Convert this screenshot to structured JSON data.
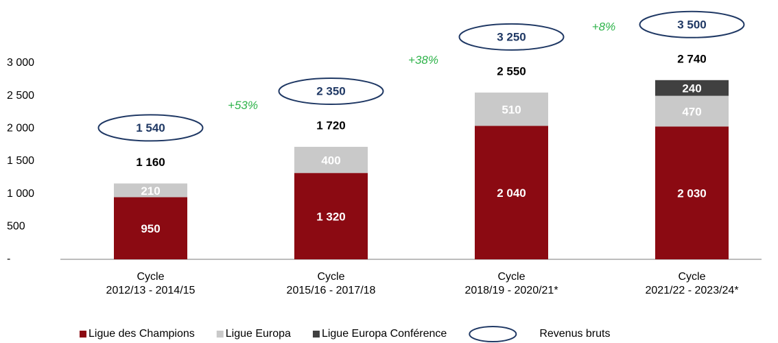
{
  "chart_data": {
    "type": "bar",
    "stacked": true,
    "categories": [
      [
        "Cycle",
        "2012/13 -  2014/15"
      ],
      [
        "Cycle",
        "2015/16 - 2017/18"
      ],
      [
        "Cycle",
        "2018/19 - 2020/21*"
      ],
      [
        "Cycle",
        "2021/22 - 2023/24*"
      ]
    ],
    "series": [
      {
        "name": "Ligue des Champions",
        "color": "#8b0a12",
        "label_color": "#ffffff",
        "values": [
          950,
          1320,
          2040,
          2030
        ],
        "value_labels": [
          "950",
          "1 320",
          "2 040",
          "2 030"
        ]
      },
      {
        "name": "Ligue Europa",
        "color": "#c9c9c9",
        "label_color": "#ffffff",
        "values": [
          210,
          400,
          510,
          470
        ],
        "value_labels": [
          "210",
          "400",
          "510",
          "470"
        ]
      },
      {
        "name": "Ligue Europa Conférence",
        "color": "#404040",
        "label_color": "#ffffff",
        "values": [
          null,
          null,
          null,
          240
        ],
        "value_labels": [
          null,
          null,
          null,
          "240"
        ]
      }
    ],
    "totals": {
      "values": [
        1160,
        1720,
        2550,
        2740
      ],
      "value_labels": [
        "1 160",
        "1 720",
        "2 550",
        "2 740"
      ]
    },
    "gross": {
      "name": "Revenus bruts",
      "color": "#1f3864",
      "values": [
        1540,
        2350,
        3250,
        3500
      ],
      "value_labels": [
        "1 540",
        "2 350",
        "3 250",
        "3 500"
      ]
    },
    "annotations": [
      "+53%",
      "+38%",
      "+8%"
    ],
    "annotation_color": "#2eb34a",
    "ylim": [
      0,
      3000
    ],
    "yticks": [
      {
        "value": 0,
        "label": "-"
      },
      500,
      {
        "value": 1000,
        "label": "1 000"
      },
      {
        "value": 1500,
        "label": "1 500"
      },
      {
        "value": 2000,
        "label": "2 000"
      },
      {
        "value": 2500,
        "label": "2 500"
      },
      {
        "value": 3000,
        "label": "3 000"
      }
    ],
    "grid": false,
    "legend": "bottom"
  }
}
